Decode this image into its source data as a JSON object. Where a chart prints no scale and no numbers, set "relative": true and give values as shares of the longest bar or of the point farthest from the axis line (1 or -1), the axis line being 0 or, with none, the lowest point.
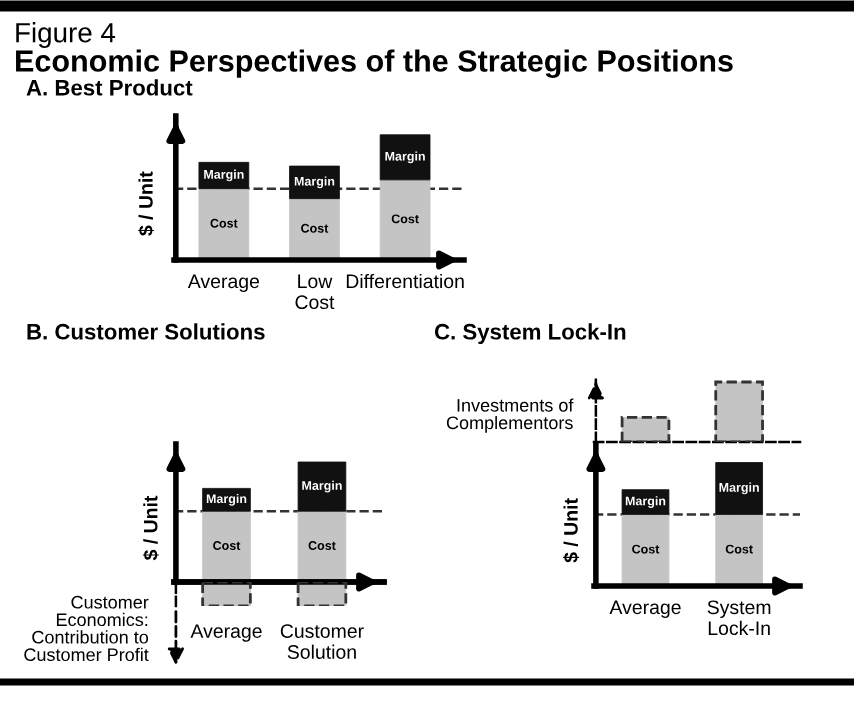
{
  "chart_data": [
    {
      "type": "bar",
      "stacked": true,
      "relative": true,
      "title": "A. Best Product",
      "ylabel": "$ / Unit",
      "tick_labels": "x",
      "annotations": [
        "Figure 4",
        "Economic Perspectives of the Strategic Positions"
      ],
      "categories": [
        "Average",
        "Low\nCost",
        "Differentiation"
      ],
      "series": [
        {
          "name": "Cost",
          "color": "#c4c4c4",
          "values": [
            0.57,
            0.49,
            0.64
          ]
        },
        {
          "name": "Margin",
          "color": "#111111",
          "values": [
            0.21,
            0.26,
            0.36
          ]
        }
      ],
      "ref_lines": [
        {
          "axis": "y",
          "value": 0.57,
          "line_style": "dashed",
          "color": "#333333"
        }
      ]
    },
    {
      "type": "bar",
      "stacked": true,
      "relative": true,
      "title": "B. Customer Solutions",
      "ylabel": "$ / Unit",
      "tick_labels": "x",
      "categories": [
        "Average",
        "Customer\nSolution"
      ],
      "series": [
        {
          "name": "Cost",
          "color": "#c4c4c4",
          "values": [
            0.59,
            0.59
          ]
        },
        {
          "name": "Margin",
          "color": "#111111",
          "values": [
            0.19,
            0.41
          ]
        }
      ],
      "ref_lines": [
        {
          "axis": "y",
          "value": 0.59,
          "line_style": "dashed",
          "color": "#333333"
        }
      ]
    },
    {
      "type": "bar",
      "relative": true,
      "categories": [
        null,
        null
      ],
      "series": [
        {
          "color": "#c4c4c4",
          "line_style": "dashed",
          "values": [
            -1.0,
            -1.0
          ]
        }
      ],
      "annotations": [
        "Customer\nEconomics:\nContribution to\nCustomer Profit"
      ]
    },
    {
      "type": "bar",
      "relative": true,
      "title": "C. System Lock-In",
      "ylabel": "Investments of\nComplementors",
      "categories": [
        null,
        null
      ],
      "series": [
        {
          "color": "#c4c4c4",
          "line_style": "dashed",
          "values": [
            0.41,
            1.0
          ]
        }
      ]
    },
    {
      "type": "bar",
      "stacked": true,
      "relative": true,
      "ylabel": "$ / Unit",
      "tick_labels": "x",
      "categories": [
        "Average",
        "System\nLock-In"
      ],
      "series": [
        {
          "name": "Cost",
          "color": "#c4c4c4",
          "values": [
            0.58,
            0.58
          ]
        },
        {
          "name": "Margin",
          "color": "#111111",
          "values": [
            0.2,
            0.42
          ]
        }
      ],
      "ref_lines": [
        {
          "axis": "y",
          "value": 0.58,
          "line_style": "dashed",
          "color": "#333333"
        }
      ]
    }
  ]
}
